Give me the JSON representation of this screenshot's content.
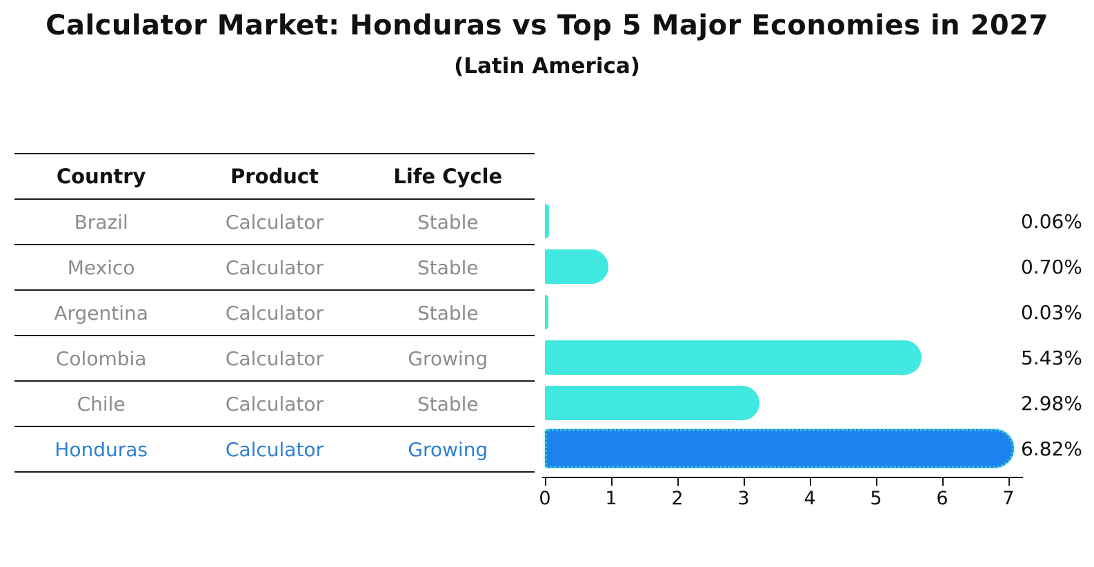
{
  "header": {
    "title": "Calculator Market: Honduras vs Top 5 Major Economies in 2027",
    "subtitle": "(Latin America)"
  },
  "table": {
    "headers": [
      "Country",
      "Product",
      "Life Cycle"
    ],
    "rows": [
      [
        "Brazil",
        "Calculator",
        "Stable"
      ],
      [
        "Mexico",
        "Calculator",
        "Stable"
      ],
      [
        "Argentina",
        "Calculator",
        "Stable"
      ],
      [
        "Colombia",
        "Calculator",
        "Growing"
      ],
      [
        "Chile",
        "Calculator",
        "Stable"
      ],
      [
        "Honduras",
        "Calculator",
        "Growing"
      ]
    ],
    "highlight_row": 5
  },
  "chart_data": {
    "type": "bar",
    "orientation": "horizontal",
    "title": "Calculator Market: Honduras vs Top 5 Major Economies in 2027",
    "subtitle": "(Latin America)",
    "categories": [
      "Brazil",
      "Mexico",
      "Argentina",
      "Colombia",
      "Chile",
      "Honduras"
    ],
    "values": [
      0.06,
      0.7,
      0.03,
      5.43,
      2.98,
      6.82
    ],
    "value_labels": [
      "0.06%",
      "0.70%",
      "0.03%",
      "5.43%",
      "2.98%",
      "6.82%"
    ],
    "xlabel": "",
    "ylabel": "",
    "xlim": [
      0,
      7
    ],
    "xticks": [
      "0",
      "1",
      "2",
      "3",
      "4",
      "5",
      "6",
      "7"
    ],
    "grid": false,
    "legend": "none",
    "bar_color": "#40E8E0",
    "highlight_color": "#1C82EE",
    "highlight_index": 5,
    "highlight_text_color": "#2e7fd6"
  }
}
